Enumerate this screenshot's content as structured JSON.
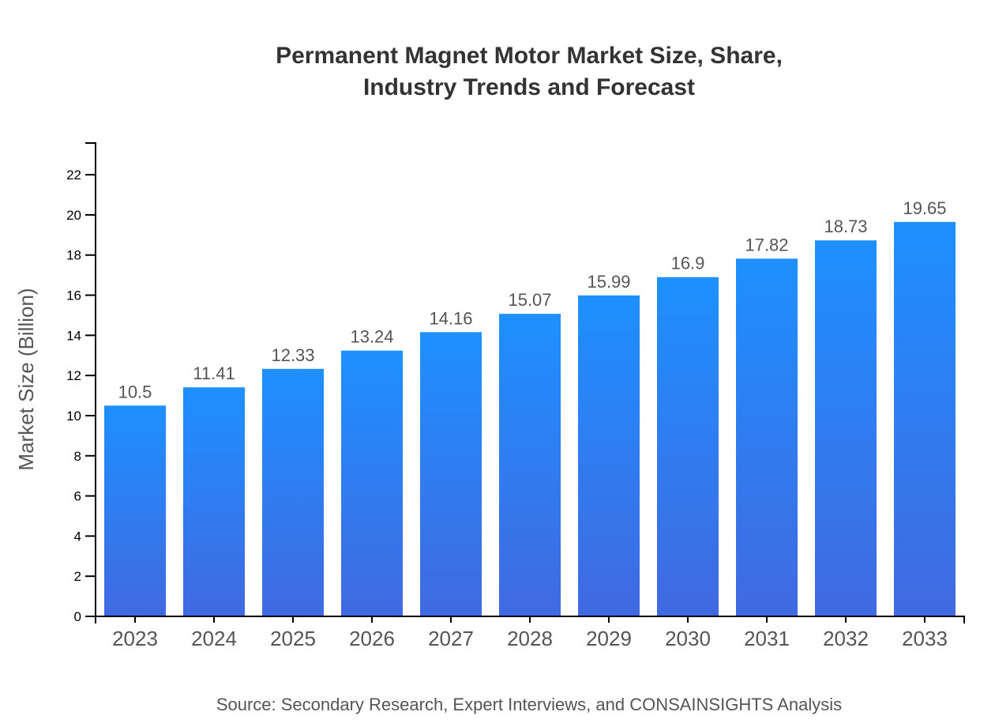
{
  "chart_data": {
    "type": "bar",
    "title_lines": [
      "Permanent Magnet Motor Market Size, Share,",
      "Industry Trends and Forecast"
    ],
    "categories": [
      "2023",
      "2024",
      "2025",
      "2026",
      "2027",
      "2028",
      "2029",
      "2030",
      "2031",
      "2032",
      "2033"
    ],
    "values": [
      10.5,
      11.41,
      12.33,
      13.24,
      14.16,
      15.07,
      15.99,
      16.9,
      17.82,
      18.73,
      19.65
    ],
    "data_labels": [
      "10.5",
      "11.41",
      "12.33",
      "13.24",
      "14.16",
      "15.07",
      "15.99",
      "16.9",
      "17.82",
      "18.73",
      "19.65"
    ],
    "xlabel": "",
    "ylabel": "Market Size (Billion)",
    "ylim": [
      0,
      23.58
    ],
    "yticks": [
      "0",
      "2",
      "4",
      "6",
      "8",
      "10",
      "12",
      "14",
      "16",
      "18",
      "20",
      "22"
    ],
    "grid": false,
    "colors": {
      "bar_top": "#1E90FF",
      "bar_bottom": "#4169E1"
    },
    "source": "Source: Secondary Research, Expert Interviews, and CONSAINSIGHTS Analysis"
  }
}
